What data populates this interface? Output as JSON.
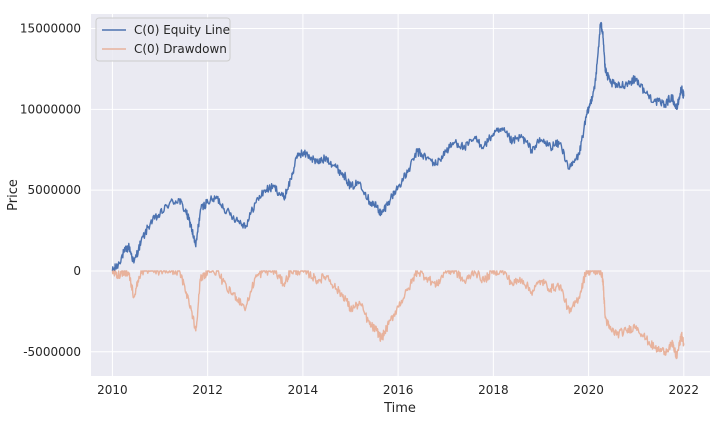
{
  "chart_data": {
    "type": "line",
    "title": "",
    "xlabel": "Time",
    "ylabel": "Price",
    "xlim": [
      2009.55,
      2022.55
    ],
    "ylim": [
      -6500000,
      15900000
    ],
    "x_ticks": [
      2010,
      2012,
      2014,
      2016,
      2018,
      2020,
      2022
    ],
    "y_ticks": [
      -5000000,
      0,
      5000000,
      10000000,
      15000000
    ],
    "grid": true,
    "legend_position": "top-left",
    "series": [
      {
        "name": "C(0) Equity Line",
        "color": "#4c72b0",
        "x": [
          2010.0,
          2010.1,
          2010.25,
          2010.35,
          2010.45,
          2010.6,
          2010.8,
          2011.0,
          2011.2,
          2011.4,
          2011.55,
          2011.65,
          2011.75,
          2011.85,
          2012.0,
          2012.2,
          2012.4,
          2012.6,
          2012.8,
          2013.0,
          2013.2,
          2013.4,
          2013.6,
          2013.75,
          2013.9,
          2014.1,
          2014.3,
          2014.5,
          2014.7,
          2014.9,
          2015.0,
          2015.2,
          2015.4,
          2015.55,
          2015.65,
          2015.8,
          2016.0,
          2016.2,
          2016.4,
          2016.6,
          2016.8,
          2017.0,
          2017.2,
          2017.4,
          2017.6,
          2017.8,
          2018.0,
          2018.2,
          2018.4,
          2018.6,
          2018.8,
          2019.0,
          2019.2,
          2019.4,
          2019.6,
          2019.8,
          2019.95,
          2020.05,
          2020.15,
          2020.25,
          2020.3,
          2020.35,
          2020.45,
          2020.6,
          2020.8,
          2021.0,
          2021.2,
          2021.4,
          2021.6,
          2021.75,
          2021.85,
          2021.95,
          2022.0
        ],
        "y": [
          0,
          300000,
          1200000,
          1500000,
          500000,
          1800000,
          3000000,
          3500000,
          4200000,
          4400000,
          3600000,
          2800000,
          1500000,
          3800000,
          4300000,
          4500000,
          3700000,
          3200000,
          2800000,
          4200000,
          5000000,
          5200000,
          4500000,
          5700000,
          7300000,
          7200000,
          6700000,
          7000000,
          6400000,
          5800000,
          5200000,
          5500000,
          4300000,
          4000000,
          3500000,
          4300000,
          5200000,
          6100000,
          7400000,
          7000000,
          6600000,
          7400000,
          8000000,
          7600000,
          8200000,
          7700000,
          8500000,
          8700000,
          8000000,
          8300000,
          7500000,
          8100000,
          7700000,
          7900000,
          6300000,
          7200000,
          9500000,
          10500000,
          11800000,
          15300000,
          14800000,
          12400000,
          11700000,
          11400000,
          11600000,
          11900000,
          11000000,
          10500000,
          10300000,
          10800000,
          10000000,
          11300000,
          10800000
        ]
      },
      {
        "name": "C(0) Drawdown",
        "color": "#e8b29c",
        "x": [
          2010.0,
          2010.1,
          2010.25,
          2010.35,
          2010.45,
          2010.6,
          2010.8,
          2011.0,
          2011.2,
          2011.4,
          2011.55,
          2011.65,
          2011.75,
          2011.85,
          2012.0,
          2012.2,
          2012.4,
          2012.6,
          2012.8,
          2013.0,
          2013.2,
          2013.4,
          2013.6,
          2013.75,
          2013.9,
          2014.1,
          2014.3,
          2014.5,
          2014.7,
          2014.9,
          2015.0,
          2015.2,
          2015.4,
          2015.55,
          2015.65,
          2015.8,
          2016.0,
          2016.2,
          2016.4,
          2016.6,
          2016.8,
          2017.0,
          2017.2,
          2017.4,
          2017.6,
          2017.8,
          2018.0,
          2018.2,
          2018.4,
          2018.6,
          2018.8,
          2019.0,
          2019.2,
          2019.4,
          2019.6,
          2019.8,
          2019.95,
          2020.05,
          2020.15,
          2020.25,
          2020.3,
          2020.35,
          2020.45,
          2020.6,
          2020.8,
          2021.0,
          2021.2,
          2021.4,
          2021.6,
          2021.75,
          2021.85,
          2021.95,
          2022.0
        ],
        "y": [
          0,
          -300000,
          0,
          -200000,
          -1600000,
          0,
          0,
          0,
          0,
          0,
          -1300000,
          -2300000,
          -3700000,
          -500000,
          0,
          0,
          -1100000,
          -1600000,
          -2300000,
          -400000,
          0,
          0,
          -800000,
          0,
          0,
          -100000,
          -600000,
          -300000,
          -1100000,
          -1700000,
          -2400000,
          -2000000,
          -3300000,
          -3700000,
          -4200000,
          -3300000,
          -2200000,
          -1200000,
          0,
          -400000,
          -900000,
          0,
          0,
          -700000,
          0,
          -600000,
          0,
          0,
          -800000,
          -500000,
          -1300000,
          -600000,
          -1100000,
          -900000,
          -2600000,
          -1600000,
          0,
          0,
          0,
          0,
          -500000,
          -2900000,
          -3600000,
          -3900000,
          -3700000,
          -3400000,
          -4200000,
          -4800000,
          -5000000,
          -4500000,
          -5300000,
          -4000000,
          -4500000
        ]
      }
    ]
  }
}
